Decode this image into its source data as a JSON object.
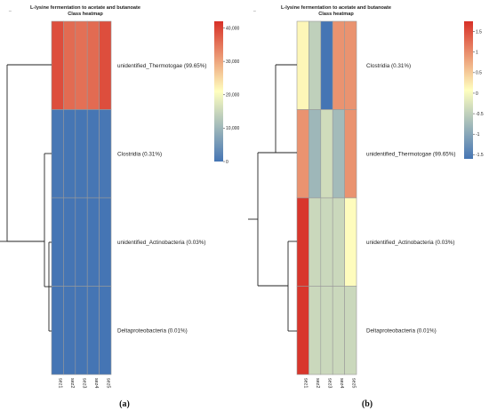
{
  "chart_data": [
    {
      "type": "heatmap",
      "panel_label": "(a)",
      "title": "L-lysine fermentation to acetate and butanoate",
      "subtitle": "Class heatmap",
      "corner_mark": "_",
      "rows": [
        "unidentified_Thermotogae (99.65%)",
        "Clostridia (0.31%)",
        "unidentified_Actinobacteria (0.03%)",
        "Deltaproteobacteria (0.01%)"
      ],
      "columns": [
        "sez1",
        "sez2",
        "sez3",
        "sez4",
        "sez5"
      ],
      "values": [
        [
          39000,
          36000,
          35500,
          36000,
          39000
        ],
        [
          300,
          150,
          100,
          150,
          300
        ],
        [
          50,
          40,
          30,
          40,
          50
        ],
        [
          10,
          10,
          10,
          10,
          10
        ]
      ],
      "colorbar": {
        "min": 0,
        "max": 42000,
        "ticks": [
          0,
          10000,
          20000,
          30000,
          40000
        ],
        "tick_labels": [
          "0",
          "10,000",
          "20,000",
          "30,000",
          "40,000"
        ],
        "colors": [
          "#4575b4",
          "#ffffbf",
          "#d73027"
        ]
      },
      "dendrogram": "rows"
    },
    {
      "type": "heatmap",
      "panel_label": "(b)",
      "title": "L-lysine fermentation to acetate and butanoate",
      "subtitle": "Class heatmap",
      "corner_mark": "_",
      "rows": [
        "Clostridia (0.31%)",
        "unidentified_Thermotogae (99.65%)",
        "unidentified_Actinobacteria (0.03%)",
        "Deltaproteobacteria (0.01%)"
      ],
      "columns": [
        "sez1",
        "sez2",
        "sez3",
        "sez4",
        "sez5"
      ],
      "values": [
        [
          0.15,
          -0.5,
          -1.6,
          0.95,
          0.95
        ],
        [
          0.95,
          -0.8,
          -0.35,
          -0.75,
          0.95
        ],
        [
          1.7,
          -0.4,
          -0.4,
          -0.4,
          0.1
        ],
        [
          1.7,
          -0.4,
          -0.4,
          -0.4,
          -0.4
        ]
      ],
      "colorbar": {
        "min": -1.6,
        "max": 1.75,
        "ticks": [
          -1.5,
          -1,
          -0.5,
          0,
          0.5,
          1,
          1.5
        ],
        "tick_labels": [
          "-1.5",
          "-1",
          "-0.5",
          "0",
          "0.5",
          "1",
          "1.5"
        ],
        "colors": [
          "#4575b4",
          "#ffffbf",
          "#d73027"
        ]
      },
      "dendrogram": "rows"
    }
  ]
}
